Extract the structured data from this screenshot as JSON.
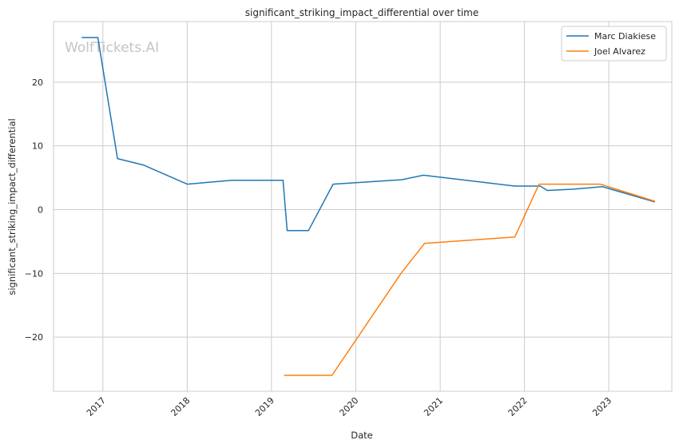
{
  "watermark": "WolfTickets.AI",
  "chart_data": {
    "type": "line",
    "title": "significant_striking_impact_differential over time",
    "xlabel": "Date",
    "ylabel": "significant_striking_impact_differential",
    "xlim": [
      "2016-06-01",
      "2023-10-01"
    ],
    "ylim": [
      -28.5,
      29.5
    ],
    "x_ticks": [
      "2017-01-01",
      "2018-01-01",
      "2019-01-01",
      "2020-01-01",
      "2021-01-01",
      "2022-01-01",
      "2023-01-01"
    ],
    "x_tick_labels": [
      "2017",
      "2018",
      "2019",
      "2020",
      "2021",
      "2022",
      "2023"
    ],
    "y_ticks": [
      -20,
      -10,
      0,
      10,
      20
    ],
    "y_tick_labels": [
      "−20",
      "−10",
      "0",
      "10",
      "20"
    ],
    "grid": true,
    "legend_position": "top-right",
    "series": [
      {
        "name": "Marc Diakiese",
        "color": "#1f77b4",
        "points": [
          [
            "2016-10-01",
            27.0
          ],
          [
            "2016-12-10",
            27.0
          ],
          [
            "2017-03-05",
            8.0
          ],
          [
            "2017-06-25",
            7.0
          ],
          [
            "2018-01-01",
            4.0
          ],
          [
            "2018-07-15",
            4.6
          ],
          [
            "2019-02-20",
            4.6
          ],
          [
            "2019-03-10",
            -3.3
          ],
          [
            "2019-06-10",
            -3.3
          ],
          [
            "2019-09-25",
            4.0
          ],
          [
            "2020-07-20",
            4.7
          ],
          [
            "2020-10-20",
            5.4
          ],
          [
            "2021-11-20",
            3.7
          ],
          [
            "2022-03-10",
            3.7
          ],
          [
            "2022-04-10",
            3.0
          ],
          [
            "2022-08-01",
            3.2
          ],
          [
            "2022-12-05",
            3.6
          ],
          [
            "2023-07-20",
            1.2
          ]
        ]
      },
      {
        "name": "Joel Alvarez",
        "color": "#ff7f0e",
        "points": [
          [
            "2019-02-25",
            -26.0
          ],
          [
            "2019-09-20",
            -26.0
          ],
          [
            "2020-07-15",
            -10.0
          ],
          [
            "2020-10-25",
            -5.3
          ],
          [
            "2021-11-20",
            -4.3
          ],
          [
            "2022-03-05",
            4.0
          ],
          [
            "2022-11-25",
            4.0
          ],
          [
            "2023-07-20",
            1.3
          ]
        ]
      }
    ]
  }
}
